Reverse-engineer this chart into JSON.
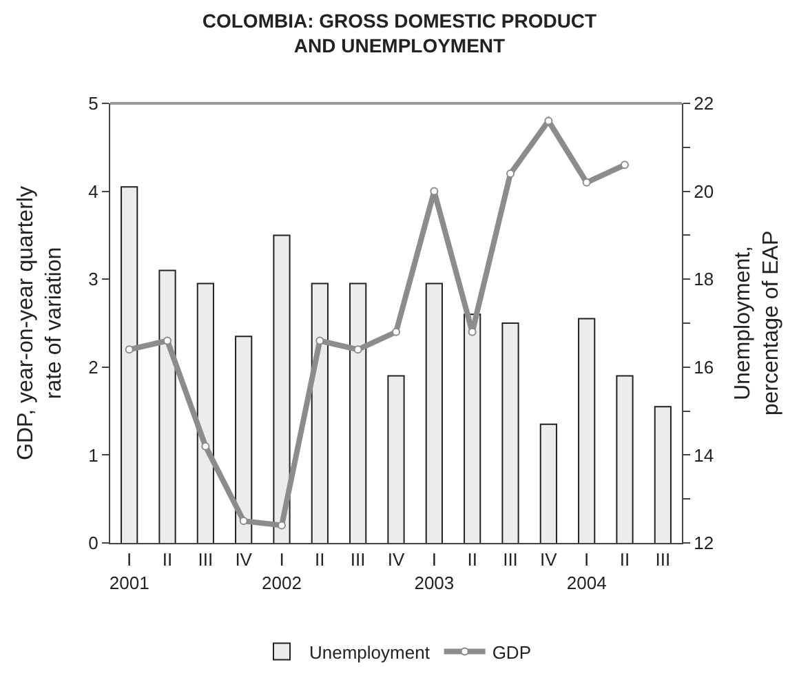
{
  "chart_data": {
    "type": "bar",
    "title": "COLOMBIA: GROSS DOMESTIC PRODUCT\nAND UNEMPLOYMENT",
    "ylabel": "GDP, year-on-year quarterly\nrate of variation",
    "y2label": "Unemployment,\npercentage of EAP",
    "categories": [
      "I\n2001",
      "II",
      "III",
      "IV",
      "I\n2002",
      "II",
      "III",
      "IV",
      "I\n2003",
      "II",
      "III",
      "IV",
      "I\n2004",
      "II",
      "III"
    ],
    "series": [
      {
        "name": "Unemployment",
        "axis": "y2",
        "color": "#ececec",
        "values": [
          20.1,
          18.2,
          17.9,
          16.7,
          19.0,
          17.9,
          17.9,
          15.8,
          17.9,
          17.2,
          17.0,
          14.7,
          17.1,
          15.8,
          15.1
        ]
      },
      {
        "name": "GDP",
        "type": "line",
        "axis": "y",
        "color": "#8c8c8c",
        "marker": "circle",
        "values": [
          2.2,
          2.3,
          1.1,
          0.25,
          0.2,
          2.3,
          2.2,
          2.4,
          4.0,
          2.4,
          4.2,
          4.8,
          4.1,
          4.3,
          null
        ]
      }
    ],
    "ylim": [
      0,
      5
    ],
    "yticks": [
      0,
      1,
      2,
      3,
      4,
      5
    ],
    "y2lim": [
      12,
      22
    ],
    "y2ticks": [
      12,
      {
        "value": 13,
        "label": null
      },
      14,
      {
        "value": 15,
        "label": null
      },
      16,
      {
        "value": 17,
        "label": null
      },
      18,
      {
        "value": 19,
        "label": null
      },
      20,
      {
        "value": 21,
        "label": null
      },
      22
    ],
    "legend": "bottom"
  }
}
